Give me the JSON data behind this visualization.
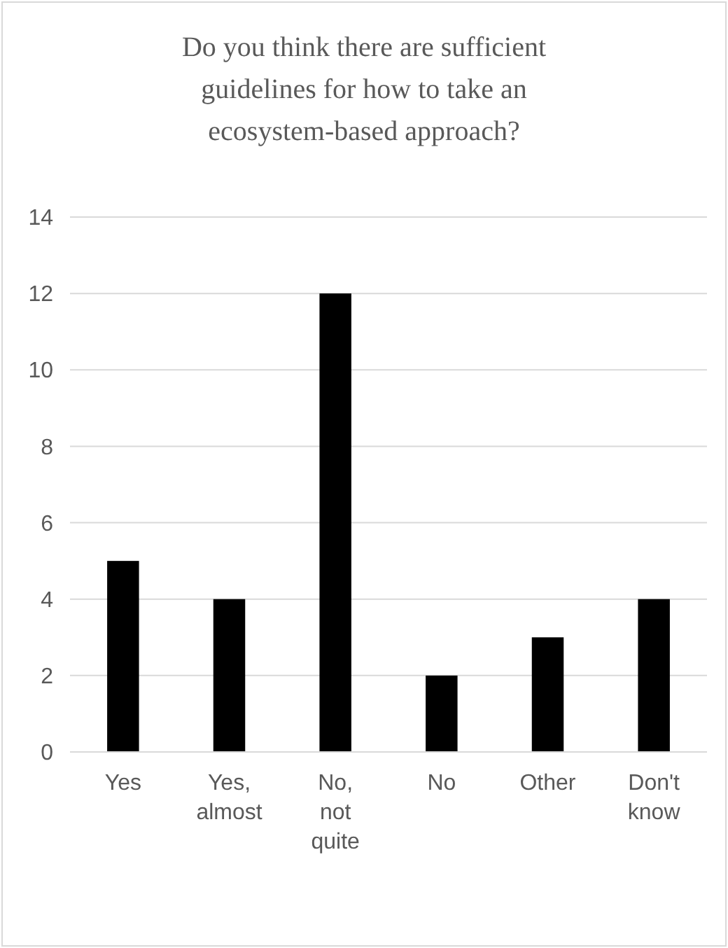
{
  "chart_data": {
    "type": "bar",
    "title": "Do you think there are sufficient guidelines for how to take an ecosystem-based approach?",
    "categories": [
      "Yes",
      "Yes, almost",
      "No, not quite",
      "No",
      "Other",
      "Don't know"
    ],
    "values": [
      5,
      4,
      12,
      2,
      3,
      4
    ],
    "color": "#000000",
    "ylim": [
      0,
      14
    ],
    "yticks": [
      0,
      2,
      4,
      6,
      8,
      10,
      12,
      14
    ],
    "grid": "y"
  }
}
